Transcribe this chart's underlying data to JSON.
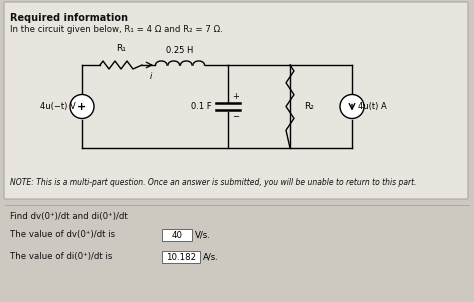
{
  "title": "Required information",
  "subtitle": "In the circuit given below, R₁ = 4 Ω and R₂ = 7 Ω.",
  "note": "NOTE: This is a multi-part question. Once an answer is submitted, you will be unable to return to this part.",
  "find_text": "Find dv(0⁺)/dt and di(0⁺)/dt",
  "answer1_label": "The value of dv(0⁺)/dt is",
  "answer1_value": "40",
  "answer1_unit": "V/s.",
  "answer2_label": "The value of di(0⁺)/dt is",
  "answer2_value": "10.182",
  "answer2_unit": "A/s.",
  "bg_color": "#cdc8c0",
  "circuit_bg": "#ddd8d0",
  "text_color": "#111111",
  "R1_label": "R₁",
  "L_label": "0.25 H",
  "C_label": "0.1 F",
  "R2_label": "R₂",
  "vs_label": "4u(−t) V",
  "is_label": "4u(t) A",
  "i_label": "i"
}
